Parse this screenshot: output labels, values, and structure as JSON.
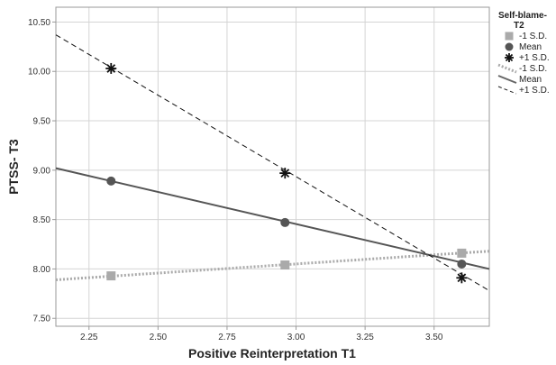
{
  "chart_data": {
    "type": "line",
    "xlabel": "Positive Reinterpretation T1",
    "ylabel": "PTSS- T3",
    "xlim": [
      2.13,
      3.7
    ],
    "ylim": [
      7.42,
      10.65
    ],
    "xticks": [
      "2.25",
      "2.50",
      "2.75",
      "3.00",
      "3.25",
      "3.50"
    ],
    "yticks": [
      "7.50",
      "8.00",
      "8.50",
      "9.00",
      "9.50",
      "10.00",
      "10.50"
    ],
    "grid": true,
    "legend": {
      "title": "Self-blame-T2",
      "title_lines": [
        "Self-blame-",
        "T2"
      ],
      "placement": "right",
      "marker_entries": [
        {
          "label": "-1 S.D.",
          "marker": "square",
          "color": "#aaaaaa"
        },
        {
          "label": "Mean",
          "marker": "circle",
          "color": "#555555"
        },
        {
          "label": "+1 S.D.",
          "marker": "star",
          "color": "#111111"
        }
      ],
      "line_entries": [
        {
          "label": "-1 S.D.",
          "style": "dotted",
          "color": "#aaaaaa"
        },
        {
          "label": "Mean",
          "style": "solid",
          "color": "#666666"
        },
        {
          "label": "+1 S.D.",
          "style": "dashed",
          "color": "#222222"
        }
      ]
    },
    "series": [
      {
        "name": "-1 S.D.",
        "color": "#aaaaaa",
        "marker": "square",
        "line_style": "dotted",
        "points": [
          {
            "x": 2.33,
            "y": 7.93
          },
          {
            "x": 2.96,
            "y": 8.04
          },
          {
            "x": 3.6,
            "y": 8.16
          }
        ],
        "fit_line": [
          {
            "x": 2.13,
            "y": 7.89
          },
          {
            "x": 3.7,
            "y": 8.18
          }
        ]
      },
      {
        "name": "Mean",
        "color": "#555555",
        "marker": "circle",
        "line_style": "solid",
        "points": [
          {
            "x": 2.33,
            "y": 8.89
          },
          {
            "x": 2.96,
            "y": 8.47
          },
          {
            "x": 3.6,
            "y": 8.05
          }
        ],
        "fit_line": [
          {
            "x": 2.13,
            "y": 9.02
          },
          {
            "x": 3.7,
            "y": 8.0
          }
        ]
      },
      {
        "name": "+1 S.D.",
        "color": "#111111",
        "marker": "star",
        "line_style": "dashed",
        "points": [
          {
            "x": 2.33,
            "y": 10.03
          },
          {
            "x": 2.96,
            "y": 8.97
          },
          {
            "x": 3.6,
            "y": 7.91
          }
        ],
        "fit_line": [
          {
            "x": 2.13,
            "y": 10.37
          },
          {
            "x": 3.7,
            "y": 7.78
          }
        ]
      }
    ]
  }
}
